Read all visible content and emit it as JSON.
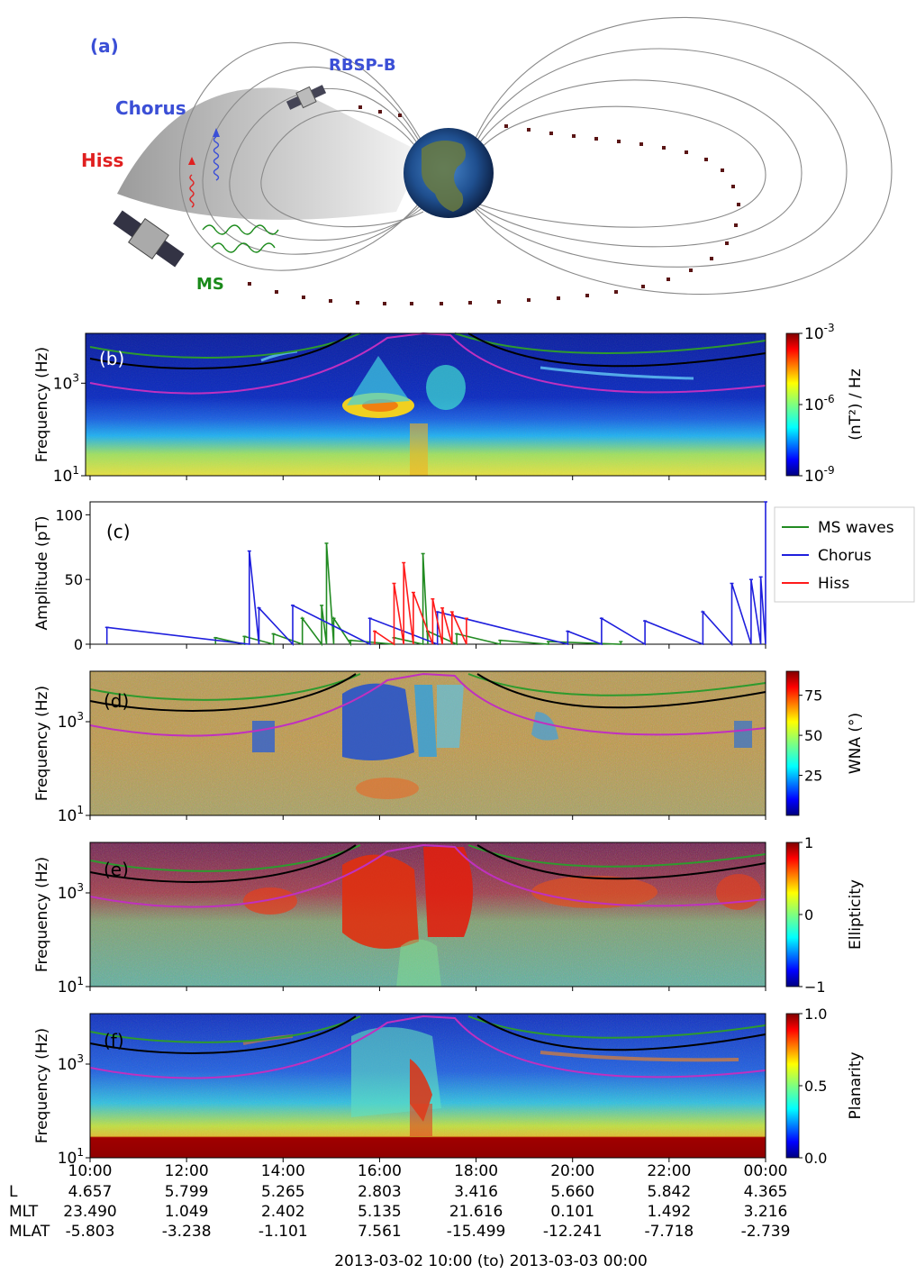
{
  "diagram": {
    "panel_label": "(a)",
    "labels": {
      "chorus": "Chorus",
      "hiss": "Hiss",
      "ms": "MS",
      "rbsp": "RBSP-B"
    },
    "colors": {
      "chorus": "#3b4fd6",
      "hiss": "#e02020",
      "ms": "#1a8a1a",
      "orbit": "#5a1515"
    }
  },
  "colors": {
    "ms": "#228b22",
    "chorus": "#1f1fdd",
    "hiss": "#ff1a1a",
    "fce_line": "#2e9a2e",
    "half_fce_line": "#000000",
    "fpe_line": "#c030c0"
  },
  "chart_data": [
    {
      "id": "b",
      "panel_label": "(b)",
      "type": "heatmap",
      "ylabel": "Frequency (Hz)",
      "yscale": "log",
      "yticks": [
        {
          "t": "10",
          "e": "1"
        },
        {
          "t": "10",
          "e": "3"
        }
      ],
      "colorbar": {
        "label": "(nT²) / Hz",
        "colormap": "jet",
        "ticks": [
          {
            "t": "10",
            "e": "-3"
          },
          {
            "t": "10",
            "e": "-6"
          },
          {
            "t": "10",
            "e": "-9"
          }
        ]
      }
    },
    {
      "id": "c",
      "panel_label": "(c)",
      "type": "line",
      "ylabel": "Amplitude (pT)",
      "ylim": [
        0,
        110
      ],
      "yticks": [
        "0",
        "50",
        "100"
      ],
      "series": [
        {
          "name": "MS waves",
          "color": "#228b22",
          "values": [
            [
              12.6,
              5
            ],
            [
              13.2,
              6
            ],
            [
              13.8,
              8
            ],
            [
              14.4,
              20
            ],
            [
              14.8,
              30
            ],
            [
              14.9,
              78
            ],
            [
              15.05,
              20
            ],
            [
              15.4,
              3
            ],
            [
              16.3,
              5
            ],
            [
              16.9,
              70
            ],
            [
              17.0,
              10
            ],
            [
              17.6,
              8
            ],
            [
              18.5,
              3
            ],
            [
              19.5,
              2
            ],
            [
              21.0,
              2
            ]
          ]
        },
        {
          "name": "Chorus",
          "color": "#1f1fdd",
          "values": [
            [
              10.35,
              13
            ],
            [
              13.3,
              72
            ],
            [
              13.5,
              28
            ],
            [
              14.2,
              30
            ],
            [
              15.8,
              20
            ],
            [
              17.2,
              25
            ],
            [
              19.9,
              10
            ],
            [
              20.6,
              20
            ],
            [
              21.5,
              18
            ],
            [
              22.7,
              25
            ],
            [
              23.3,
              47
            ],
            [
              23.7,
              50
            ],
            [
              23.9,
              52
            ],
            [
              24.0,
              110
            ]
          ]
        },
        {
          "name": "Hiss",
          "color": "#ff1a1a",
          "values": [
            [
              15.9,
              10
            ],
            [
              16.3,
              47
            ],
            [
              16.5,
              63
            ],
            [
              16.7,
              40
            ],
            [
              17.1,
              35
            ],
            [
              17.3,
              28
            ],
            [
              17.5,
              25
            ],
            [
              17.8,
              20
            ]
          ]
        }
      ]
    },
    {
      "id": "d",
      "panel_label": "(d)",
      "type": "heatmap",
      "ylabel": "Frequency (Hz)",
      "yscale": "log",
      "yticks": [
        {
          "t": "10",
          "e": "1"
        },
        {
          "t": "10",
          "e": "3"
        }
      ],
      "colorbar": {
        "label": "WNA (°)",
        "colormap": "jet",
        "min": 0,
        "max": 90,
        "ticks": [
          "75",
          "50",
          "25"
        ]
      }
    },
    {
      "id": "e",
      "panel_label": "(e)",
      "type": "heatmap",
      "ylabel": "Frequency (Hz)",
      "yscale": "log",
      "yticks": [
        {
          "t": "10",
          "e": "1"
        },
        {
          "t": "10",
          "e": "3"
        }
      ],
      "colorbar": {
        "label": "Ellipticity",
        "colormap": "jet",
        "min": -1,
        "max": 1,
        "ticks": [
          "1",
          "0",
          "−1"
        ]
      }
    },
    {
      "id": "f",
      "panel_label": "(f)",
      "type": "heatmap",
      "ylabel": "Frequency (Hz)",
      "yscale": "log",
      "yticks": [
        {
          "t": "10",
          "e": "1"
        },
        {
          "t": "10",
          "e": "3"
        }
      ],
      "colorbar": {
        "label": "Planarity",
        "colormap": "jet",
        "min": 0,
        "max": 1,
        "ticks": [
          "1.0",
          "0.5",
          "0.0"
        ]
      }
    }
  ],
  "xaxis": {
    "times": [
      "10:00",
      "12:00",
      "14:00",
      "16:00",
      "18:00",
      "20:00",
      "22:00",
      "00:00"
    ],
    "rows": [
      {
        "label": "L",
        "values": [
          "4.657",
          "5.799",
          "5.265",
          "2.803",
          "3.416",
          "5.660",
          "5.842",
          "4.365"
        ]
      },
      {
        "label": "MLT",
        "values": [
          "23.490",
          "1.049",
          "2.402",
          "5.135",
          "21.616",
          "0.101",
          "1.492",
          "3.216"
        ]
      },
      {
        "label": "MLAT",
        "values": [
          "-5.803",
          "-3.238",
          "-1.101",
          "7.561",
          "-15.499",
          "-12.241",
          "-7.718",
          "-2.739"
        ]
      }
    ],
    "date_range": "2013-03-02 10:00 (to) 2013-03-03 00:00"
  }
}
